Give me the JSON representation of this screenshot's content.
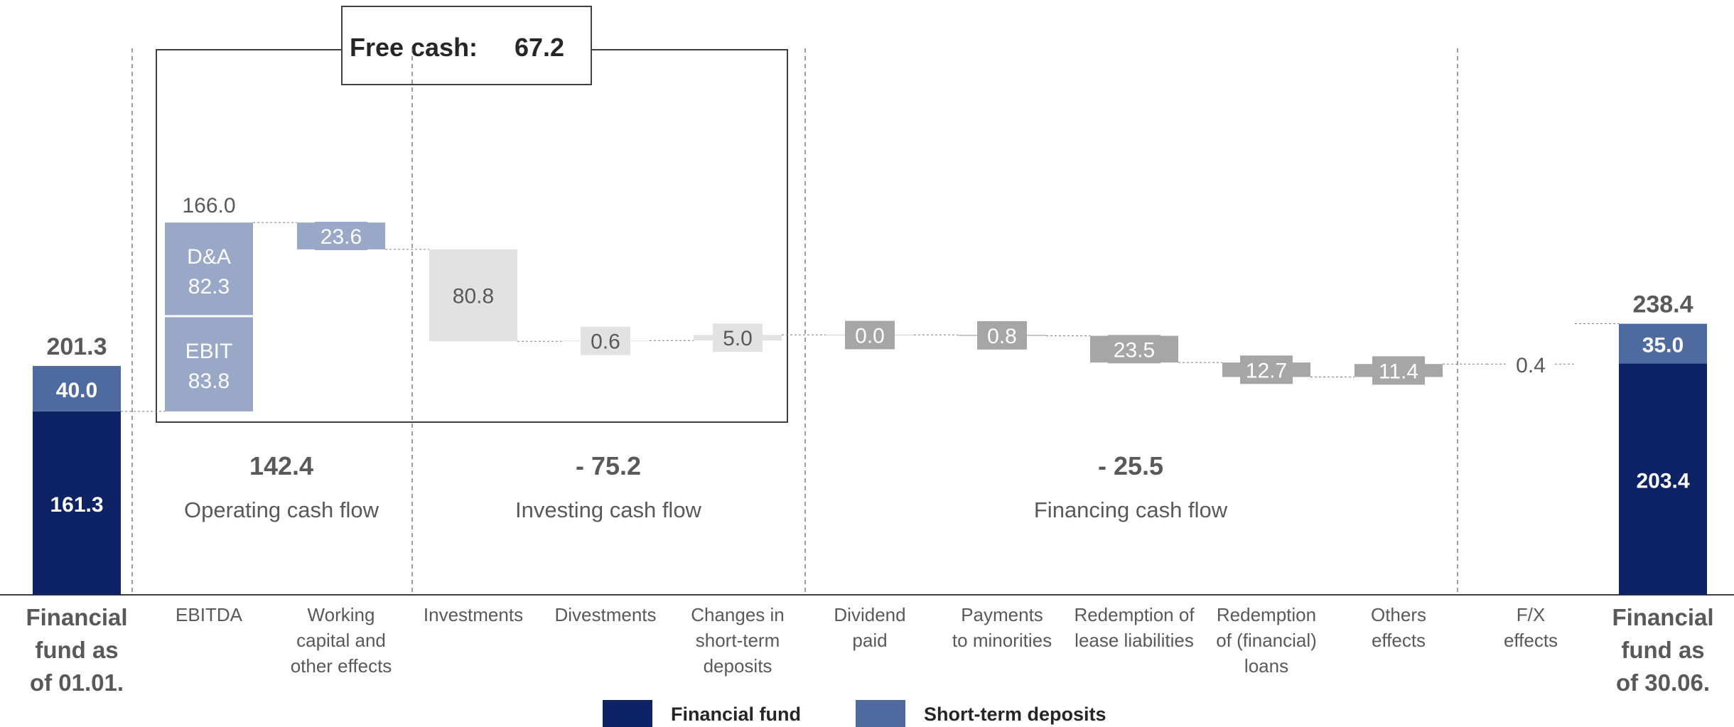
{
  "chart_data": {
    "type": "waterfall",
    "free_cash_label": "Free cash:",
    "free_cash_value": "67.2",
    "start": {
      "label_lines": [
        "Financial",
        "fund as",
        "of 01.01."
      ],
      "total": 201.3,
      "total_label": "201.3",
      "financial_fund": 161.3,
      "financial_fund_label": "161.3",
      "short_term_deposits": 40.0,
      "short_term_deposits_label": "40.0"
    },
    "end": {
      "label_lines": [
        "Financial",
        "fund as",
        "of 30.06."
      ],
      "total": 238.4,
      "total_label": "238.4",
      "financial_fund": 203.4,
      "financial_fund_label": "203.4",
      "short_term_deposits": 35.0,
      "short_term_deposits_label": "35.0"
    },
    "ebitda": {
      "category_lines": [
        "EBITDA"
      ],
      "total": 166.0,
      "total_label": "166.0",
      "parts": [
        {
          "name": "EBIT",
          "value": 83.8,
          "label_lines": [
            "EBIT",
            "83.8"
          ]
        },
        {
          "name": "D&A",
          "value": 82.3,
          "label_lines": [
            "D&A",
            "82.3"
          ]
        }
      ]
    },
    "steps": [
      {
        "category_lines": [
          "Working",
          "capital and",
          "other effects"
        ],
        "value": -23.6,
        "label": "23.6",
        "group": "operating"
      },
      {
        "category_lines": [
          "Investments"
        ],
        "value": -80.8,
        "label": "80.8",
        "group": "investing"
      },
      {
        "category_lines": [
          "Divestments"
        ],
        "value": 0.6,
        "label": "0.6",
        "group": "investing"
      },
      {
        "category_lines": [
          "Changes in",
          "short-term",
          "deposits"
        ],
        "value": 5.0,
        "label": "5.0",
        "group": "investing"
      },
      {
        "category_lines": [
          "Dividend",
          "paid"
        ],
        "value": 0.0,
        "label": "0.0",
        "group": "financing"
      },
      {
        "category_lines": [
          "Payments",
          "to minorities"
        ],
        "value": -0.8,
        "label": "0.8",
        "group": "financing"
      },
      {
        "category_lines": [
          "Redemption of",
          "lease liabilities"
        ],
        "value": -23.5,
        "label": "23.5",
        "group": "financing"
      },
      {
        "category_lines": [
          "Redemption",
          "of (financial)",
          "loans"
        ],
        "value": -12.7,
        "label": "12.7",
        "group": "financing"
      },
      {
        "category_lines": [
          "Others",
          "effects"
        ],
        "value": 11.4,
        "label": "11.4",
        "group": "financing"
      },
      {
        "category_lines": [
          "F/X",
          "effects"
        ],
        "value": 0.4,
        "label": "0.4",
        "group": "fx"
      }
    ],
    "section_totals": [
      {
        "name": "Operating cash flow",
        "value": "142.4"
      },
      {
        "name": "Investing cash flow",
        "value": "- 75.2"
      },
      {
        "name": "Financing cash flow",
        "value": "- 25.5"
      }
    ],
    "legend": [
      {
        "name": "Financial fund",
        "color": "#0d2366"
      },
      {
        "name": "Short-term deposits",
        "color": "#4e6a9e"
      }
    ],
    "colors": {
      "financial_fund": "#0d2366",
      "short_term_deposits": "#4e6a9e",
      "operating": "#9aa8c8",
      "investing": "#e2e2e2",
      "financing": "#a6a6a6",
      "text_gray": "#595959"
    }
  }
}
